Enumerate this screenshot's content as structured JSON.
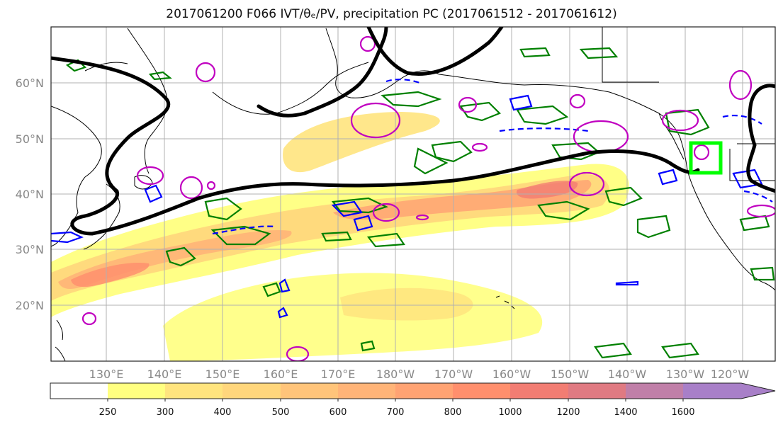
{
  "title": "2017061200 F066 IVT/θₑ/PV, precipitation PC (2017061512 - 2017061612)",
  "map": {
    "lon_range": [
      120,
      245
    ],
    "lat_range": [
      10,
      70
    ],
    "lat_ticks": [
      {
        "lat": 60,
        "label": "60°N"
      },
      {
        "lat": 50,
        "label": "50°N"
      },
      {
        "lat": 40,
        "label": "40°N"
      },
      {
        "lat": 30,
        "label": "30°N"
      },
      {
        "lat": 20,
        "label": "20°N"
      }
    ],
    "lon_ticks": [
      {
        "lon": 130,
        "label": "130°E"
      },
      {
        "lon": 140,
        "label": "140°E"
      },
      {
        "lon": 150,
        "label": "150°E"
      },
      {
        "lon": 160,
        "label": "160°E"
      },
      {
        "lon": 170,
        "label": "170°E"
      },
      {
        "lon": 180,
        "label": "180°W"
      },
      {
        "lon": 190,
        "label": "170°W"
      },
      {
        "lon": 200,
        "label": "160°W"
      },
      {
        "lon": 210,
        "label": "150°W"
      },
      {
        "lon": 220,
        "label": "140°W"
      },
      {
        "lon": 230,
        "label": "130°W"
      },
      {
        "lon": 240,
        "label": "120°W"
      }
    ],
    "ivt_levels": [
      250,
      300,
      400,
      500,
      600,
      700,
      800,
      1000,
      1200,
      1400,
      1600
    ],
    "ivt_colors": [
      "#ffff80",
      "#ffe47e",
      "#ffd67c",
      "#ffc47a",
      "#ffb478",
      "#ffa373",
      "#ff8f6d",
      "#f27d73",
      "#e07a82",
      "#c07fa8",
      "#a87fc8"
    ],
    "colors": {
      "pv_contour": "#000000",
      "theta_e_pos": "#008000",
      "theta_e_neg": "#0000ff",
      "precip_pc": "#c000c0",
      "target_box": "#00ff00",
      "coastline": "#000000"
    },
    "target_box": {
      "lon": [
        236.5,
        242
      ],
      "lat": [
        43.5,
        49
      ]
    }
  },
  "colorbar": {
    "labels": [
      "250",
      "300",
      "400",
      "500",
      "600",
      "700",
      "800",
      "1000",
      "1200",
      "1400",
      "1600"
    ]
  }
}
